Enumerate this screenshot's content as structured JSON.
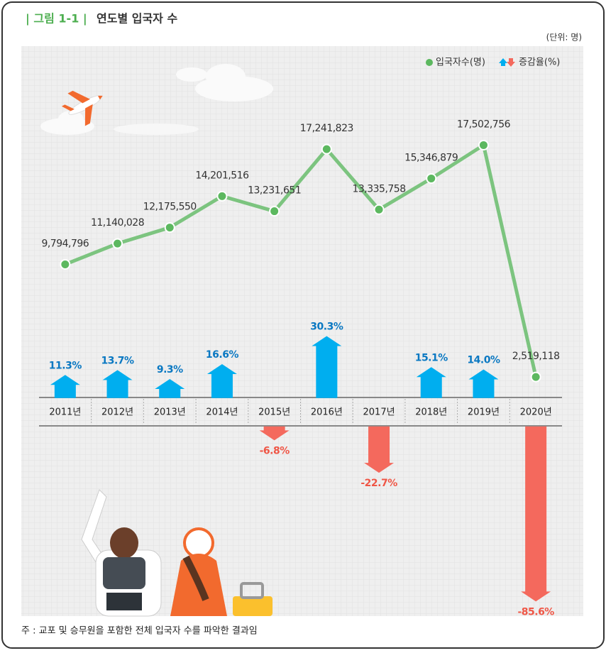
{
  "chart_data": {
    "type": "combo",
    "figure_label": "| 그림 1-1 |",
    "title": "연도별 입국자 수",
    "unit_label": "(단위: 명)",
    "note": "주 : 교포 및 승무원을 포함한 전체 입국자 수를 파악한 결과임",
    "categories": [
      "2011년",
      "2012년",
      "2013년",
      "2014년",
      "2015년",
      "2016년",
      "2017년",
      "2018년",
      "2019년",
      "2020년"
    ],
    "series": [
      {
        "name": "입국자수(명)",
        "type": "line",
        "color": "#7cc47f",
        "marker_color": "#5cb85f",
        "values": [
          9794796,
          11140028,
          12175550,
          14201516,
          13231651,
          17241823,
          13335758,
          15346879,
          17502756,
          2519118
        ],
        "value_labels": [
          "9,794,796",
          "11,140,028",
          "12,175,550",
          "14,201,516",
          "13,231,651",
          "17,241,823",
          "13,335,758",
          "15,346,879",
          "17,502,756",
          "2,519,118"
        ]
      },
      {
        "name": "증감율(%)",
        "type": "arrow",
        "axis": "y2",
        "color": "#00aeef",
        "negative_color": "#f4695d",
        "label_color": "#0a78c2",
        "negative_label_color": "#ef5646",
        "values": [
          11.3,
          13.7,
          9.3,
          16.6,
          -6.8,
          30.3,
          -22.7,
          15.1,
          14.0,
          -85.6
        ],
        "value_labels": [
          "11.3%",
          "13.7%",
          "9.3%",
          "16.6%",
          "-6.8%",
          "30.3%",
          "-22.7%",
          "15.1%",
          "14.0%",
          "-85.6%"
        ]
      }
    ],
    "ylim": [
      0,
      20000000
    ],
    "y2lim": [
      -90,
      35
    ]
  }
}
